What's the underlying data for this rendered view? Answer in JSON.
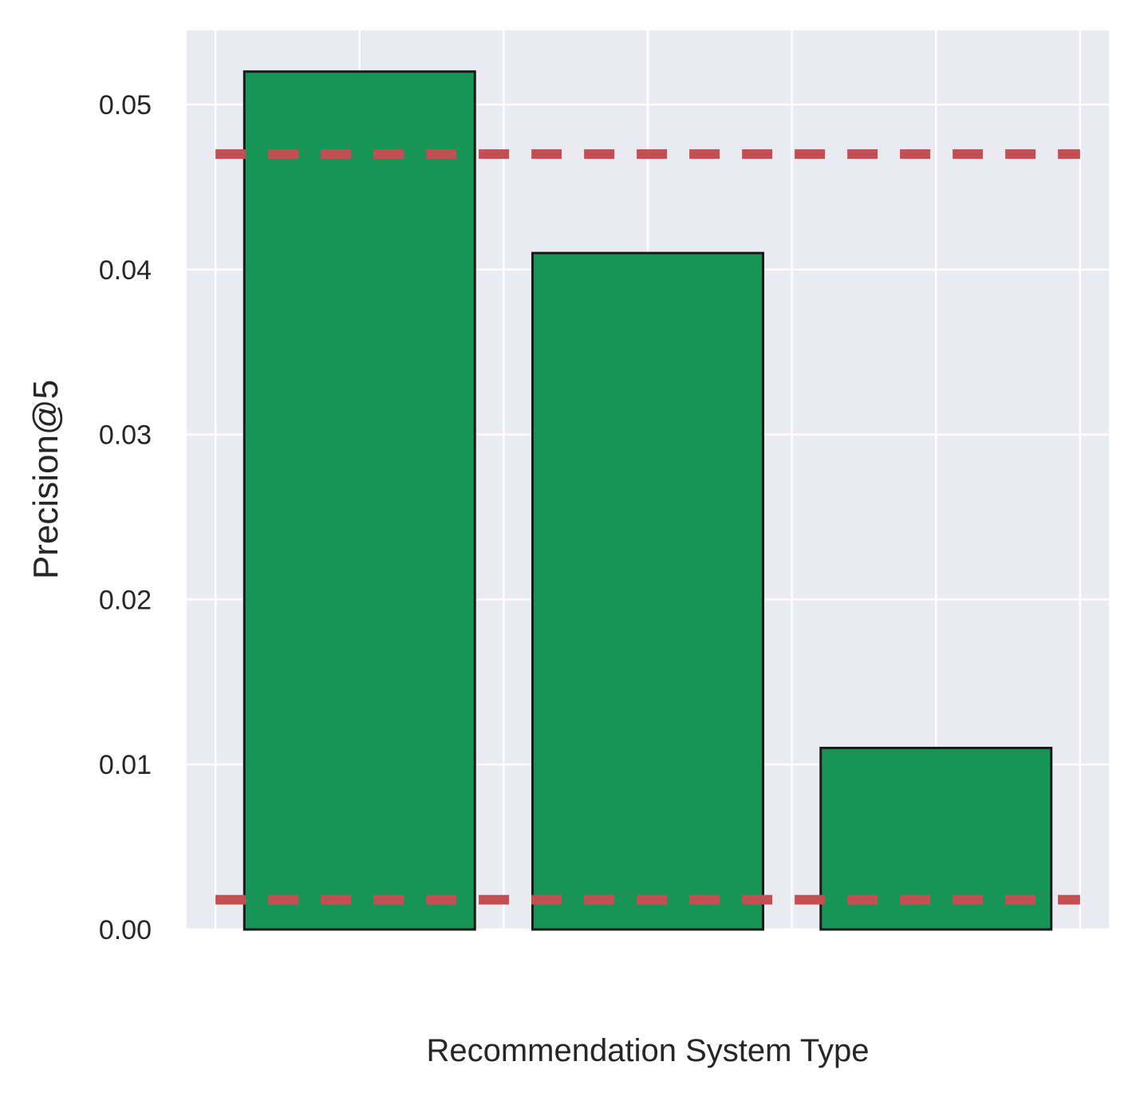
{
  "chart_data": {
    "type": "bar",
    "categories": [
      "",
      "",
      ""
    ],
    "values": [
      0.052,
      0.041,
      0.011
    ],
    "xlabel": "Recommendation System Type",
    "ylabel": "Precision@5",
    "ylim": [
      0,
      0.0545
    ],
    "yticks": [
      "0.00",
      "0.01",
      "0.02",
      "0.03",
      "0.04",
      "0.05"
    ],
    "reference_lines": [
      0.047,
      0.0018
    ],
    "grid": true,
    "colors": {
      "bar": "#189556",
      "bar_edge": "#1a1a1a",
      "reference_line": "#c44e52",
      "plot_background": "#eaeaf2",
      "grid": "#ffffff"
    }
  }
}
